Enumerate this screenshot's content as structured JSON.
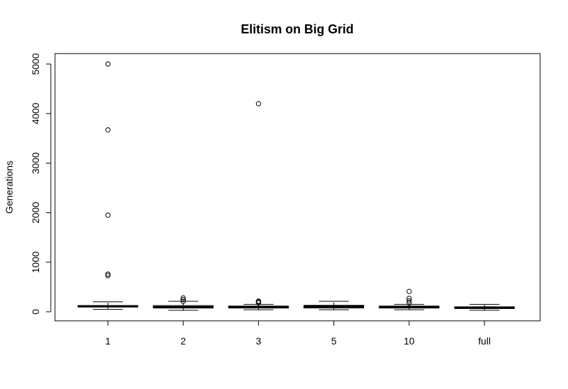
{
  "chart_data": {
    "type": "box",
    "title": "Elitism on Big Grid",
    "xlabel": "",
    "ylabel": "Generations",
    "ylim": [
      -180,
      5180
    ],
    "yticks": [
      0,
      1000,
      2000,
      3000,
      4000,
      5000
    ],
    "grid": false,
    "categories": [
      "1",
      "2",
      "3",
      "5",
      "10",
      "full"
    ],
    "boxes": [
      {
        "category": "1",
        "min": 50,
        "q1": 95,
        "median": 110,
        "q3": 125,
        "max": 200,
        "outliers": [
          5000,
          3670,
          1950,
          760,
          730
        ]
      },
      {
        "category": "2",
        "min": 30,
        "q1": 75,
        "median": 95,
        "q3": 125,
        "max": 210,
        "outliers": [
          280,
          245,
          210
        ]
      },
      {
        "category": "3",
        "min": 40,
        "q1": 75,
        "median": 95,
        "q3": 115,
        "max": 150,
        "outliers": [
          4200,
          215,
          200,
          180
        ]
      },
      {
        "category": "5",
        "min": 40,
        "q1": 75,
        "median": 105,
        "q3": 130,
        "max": 210,
        "outliers": []
      },
      {
        "category": "10",
        "min": 40,
        "q1": 75,
        "median": 95,
        "q3": 115,
        "max": 150,
        "outliers": [
          410,
          270,
          220,
          175
        ]
      },
      {
        "category": "full",
        "min": 30,
        "q1": 65,
        "median": 80,
        "q3": 100,
        "max": 150,
        "outliers": []
      }
    ]
  }
}
